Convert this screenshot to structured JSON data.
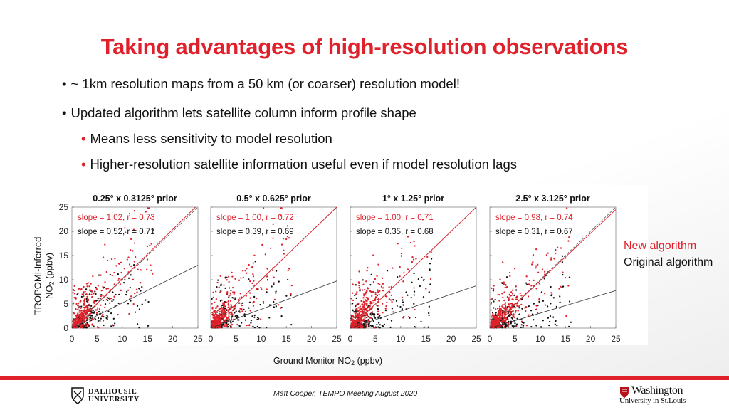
{
  "title": "Taking advantages of high-resolution observations",
  "bullets": [
    "~ 1km resolution maps from a 50 km (or coarser) resolution model!",
    "Updated algorithm lets satellite column inform profile shape",
    "Means less sensitivity to model resolution",
    "Higher-resolution satellite information useful even if model resolution lags"
  ],
  "bullet_glyph": "•",
  "ylabel_line1": "TROPOMI-Inferred",
  "ylabel_line2_pre": "NO",
  "ylabel_line2_sub": "2",
  "ylabel_line2_post": " (ppbv)",
  "xlabel_pre": "Ground Monitor NO",
  "xlabel_sub": "2",
  "xlabel_post": " (ppbv)",
  "legend": {
    "new": "New algorithm",
    "original": "Original algorithm"
  },
  "footer": {
    "credit": "Matt Cooper, TEMPO Meeting August 2020"
  },
  "logos": {
    "dalhousie_line1": "DALHOUSIE",
    "dalhousie_line2": "UNIVERSITY",
    "washu_line1": "Washington",
    "washu_line2": "University in St.Louis"
  },
  "colors": {
    "accent_red": "#e0202a",
    "text": "#111111"
  },
  "chart_data": [
    {
      "type": "scatter",
      "title": "0.25° x 0.3125° prior",
      "xlim": [
        0,
        25
      ],
      "ylim": [
        0,
        25
      ],
      "xticks": [
        0,
        5,
        10,
        15,
        20,
        25
      ],
      "yticks": [
        0,
        5,
        10,
        15,
        20,
        25
      ],
      "series": [
        {
          "name": "New algorithm",
          "color": "#e0202a",
          "annotation": "slope = 1.02, r = 0.73",
          "slope": 1.02,
          "r": 0.73
        },
        {
          "name": "Original algorithm",
          "color": "#111111",
          "annotation": "slope = 0.52, r = 0.71",
          "slope": 0.52,
          "r": 0.71
        }
      ]
    },
    {
      "type": "scatter",
      "title": "0.5° x 0.625° prior",
      "xlim": [
        0,
        25
      ],
      "ylim": [
        0,
        25
      ],
      "xticks": [
        0,
        5,
        10,
        15,
        20,
        25
      ],
      "yticks": [
        0,
        5,
        10,
        15,
        20,
        25
      ],
      "series": [
        {
          "name": "New algorithm",
          "color": "#e0202a",
          "annotation": "slope = 1.00, r = 0.72",
          "slope": 1.0,
          "r": 0.72
        },
        {
          "name": "Original algorithm",
          "color": "#111111",
          "annotation": "slope = 0.39, r = 0.69",
          "slope": 0.39,
          "r": 0.69
        }
      ]
    },
    {
      "type": "scatter",
      "title": "1° x 1.25° prior",
      "xlim": [
        0,
        25
      ],
      "ylim": [
        0,
        25
      ],
      "xticks": [
        0,
        5,
        10,
        15,
        20,
        25
      ],
      "yticks": [
        0,
        5,
        10,
        15,
        20,
        25
      ],
      "series": [
        {
          "name": "New algorithm",
          "color": "#e0202a",
          "annotation": "slope = 1.00, r = 0.71",
          "slope": 1.0,
          "r": 0.71
        },
        {
          "name": "Original algorithm",
          "color": "#111111",
          "annotation": "slope = 0.35, r = 0.68",
          "slope": 0.35,
          "r": 0.68
        }
      ]
    },
    {
      "type": "scatter",
      "title": "2.5° x 3.125° prior",
      "xlim": [
        0,
        25
      ],
      "ylim": [
        0,
        25
      ],
      "xticks": [
        0,
        5,
        10,
        15,
        20,
        25
      ],
      "yticks": [
        0,
        5,
        10,
        15,
        20,
        25
      ],
      "series": [
        {
          "name": "New algorithm",
          "color": "#e0202a",
          "annotation": "slope = 0.98, r = 0.74",
          "slope": 0.98,
          "r": 0.74
        },
        {
          "name": "Original algorithm",
          "color": "#111111",
          "annotation": "slope = 0.31, r = 0.67",
          "slope": 0.31,
          "r": 0.67
        }
      ]
    }
  ]
}
